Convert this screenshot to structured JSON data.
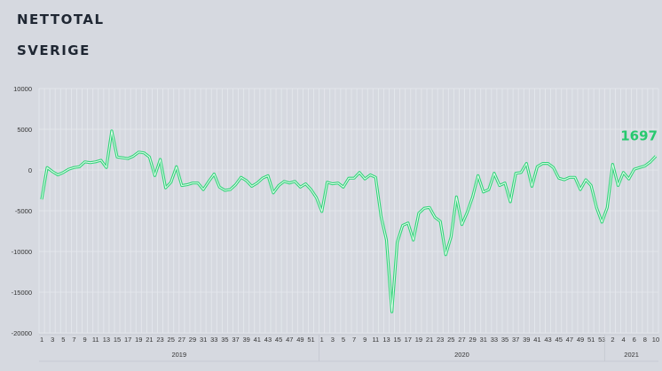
{
  "header": {
    "line1": "NETTOTAL",
    "line2": "SVERIGE"
  },
  "colors": {
    "line": "#33d47a",
    "annotation": "#27c96e",
    "grid": "#e6e9ee",
    "text": "#333333"
  },
  "chart_data": {
    "type": "line",
    "title": "NETTOTAL",
    "subtitle": "SVERIGE",
    "xlabel": "",
    "ylabel": "",
    "ylim": [
      -20000,
      10000
    ],
    "yticks": [
      10000,
      5000,
      0,
      -5000,
      -10000,
      -15000,
      -20000
    ],
    "grid": true,
    "annotation": {
      "text": "1697",
      "x": "2021-10",
      "y": 1697
    },
    "years": [
      {
        "label": "2019",
        "start": 0,
        "end": 52
      },
      {
        "label": "2020",
        "start": 52,
        "end": 105
      },
      {
        "label": "2021",
        "start": 105,
        "end": 115
      }
    ],
    "x_tick_labels": [
      "1",
      "3",
      "5",
      "7",
      "9",
      "11",
      "13",
      "15",
      "17",
      "19",
      "21",
      "23",
      "25",
      "27",
      "29",
      "31",
      "33",
      "35",
      "37",
      "39",
      "41",
      "43",
      "45",
      "47",
      "49",
      "51",
      "1",
      "3",
      "5",
      "7",
      "9",
      "11",
      "13",
      "15",
      "17",
      "19",
      "21",
      "23",
      "25",
      "27",
      "29",
      "31",
      "33",
      "35",
      "37",
      "39",
      "41",
      "43",
      "45",
      "47",
      "49",
      "51",
      "53",
      "2",
      "4",
      "6",
      "8",
      "10"
    ],
    "series": [
      {
        "values": [
          -3600,
          300,
          -200,
          -600,
          -300,
          100,
          300,
          400,
          1000,
          900,
          1000,
          1200,
          300,
          4800,
          1600,
          1500,
          1400,
          1700,
          2200,
          2100,
          1600,
          -700,
          1300,
          -2200,
          -1500,
          400,
          -1900,
          -1800,
          -1600,
          -1600,
          -2400,
          -1400,
          -500,
          -2100,
          -2500,
          -2400,
          -1800,
          -900,
          -1300,
          -2000,
          -1600,
          -1000,
          -700,
          -2800,
          -1900,
          -1400,
          -1600,
          -1400,
          -2100,
          -1700,
          -2400,
          -3400,
          -5100,
          -1500,
          -1700,
          -1600,
          -2100,
          -1000,
          -1000,
          -300,
          -1100,
          -600,
          -900,
          -5700,
          -8600,
          -17400,
          -8900,
          -6800,
          -6500,
          -8600,
          -5300,
          -4700,
          -4600,
          -5800,
          -6300,
          -10400,
          -8200,
          -3300,
          -6700,
          -5200,
          -3300,
          -700,
          -2700,
          -2400,
          -400,
          -1900,
          -1600,
          -3900,
          -400,
          -300,
          800,
          -2000,
          400,
          800,
          800,
          300,
          -1000,
          -1200,
          -900,
          -900,
          -2400,
          -1200,
          -1900,
          -4600,
          -6400,
          -4600,
          700,
          -1900,
          -300,
          -1100,
          100,
          300,
          500,
          1000,
          1697
        ]
      }
    ]
  }
}
